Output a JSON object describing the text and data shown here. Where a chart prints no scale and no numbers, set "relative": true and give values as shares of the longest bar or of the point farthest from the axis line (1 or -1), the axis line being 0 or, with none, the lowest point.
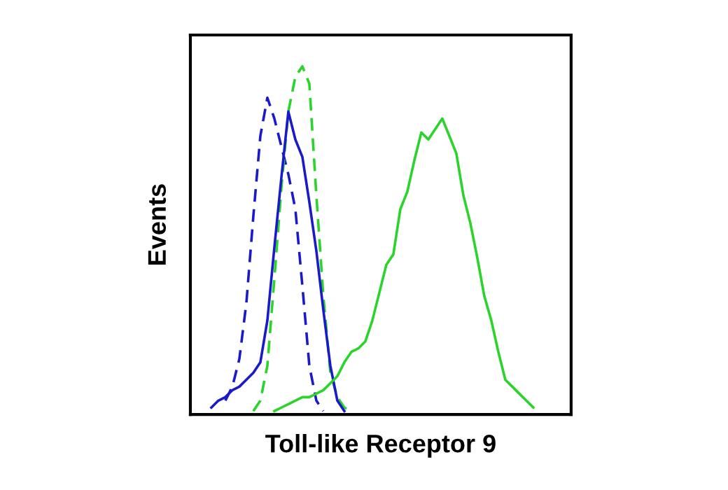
{
  "chart_data": {
    "type": "line",
    "xlabel": "Toll-like Receptor 9",
    "ylabel": "Events",
    "relative": true,
    "tick_labels": false,
    "grid": false,
    "legend": false,
    "marker": "none",
    "categories": [
      null,
      null,
      null,
      null,
      null,
      null,
      null,
      null,
      null,
      null,
      null,
      null,
      null,
      null,
      null,
      null,
      null,
      null,
      null,
      null,
      null,
      null,
      null,
      null,
      null,
      null,
      null,
      null,
      null,
      null,
      null,
      null,
      null,
      null,
      null,
      null,
      null,
      null,
      null,
      null,
      null,
      null,
      null,
      null,
      null,
      null,
      null,
      null,
      null,
      null,
      null,
      null,
      null,
      null,
      null
    ],
    "series": [
      {
        "color": "#1a1acc",
        "line_style": "dashed",
        "values": [
          null,
          null,
          null,
          null,
          null,
          0.04,
          0.08,
          0.16,
          0.32,
          0.57,
          0.8,
          0.91,
          0.85,
          0.77,
          0.69,
          0.59,
          0.37,
          0.14,
          0.04,
          0.01,
          null,
          null,
          null,
          null,
          null,
          null,
          null,
          null,
          null,
          null,
          null,
          null,
          null,
          null,
          null,
          null,
          null,
          null,
          null,
          null,
          null,
          null,
          null,
          null,
          null,
          null,
          null,
          null,
          null,
          null,
          null,
          null,
          null,
          null,
          null
        ]
      },
      {
        "color": "#2ad42a",
        "line_style": "dashed",
        "values": [
          null,
          null,
          null,
          null,
          null,
          null,
          null,
          null,
          null,
          0.01,
          0.04,
          0.14,
          0.39,
          0.65,
          0.87,
          0.97,
          1.0,
          0.95,
          0.63,
          0.34,
          0.12,
          0.05,
          0.02,
          0.01,
          null,
          null,
          null,
          null,
          null,
          null,
          null,
          null,
          null,
          null,
          null,
          null,
          null,
          null,
          null,
          null,
          null,
          null,
          null,
          null,
          null,
          null,
          null,
          null,
          null,
          null,
          null,
          null,
          null,
          null,
          null
        ]
      },
      {
        "color": "#1a1acc",
        "line_style": "solid",
        "values": [
          null,
          null,
          null,
          0.02,
          0.04,
          0.05,
          0.07,
          0.08,
          0.1,
          0.12,
          0.15,
          0.27,
          0.48,
          0.68,
          0.87,
          0.79,
          0.74,
          0.61,
          0.47,
          0.3,
          0.14,
          0.04,
          0.01,
          null,
          null,
          null,
          null,
          null,
          null,
          null,
          null,
          null,
          null,
          null,
          null,
          null,
          null,
          null,
          null,
          null,
          null,
          null,
          null,
          null,
          null,
          null,
          null,
          null,
          null,
          null,
          null,
          null,
          null,
          null,
          null
        ]
      },
      {
        "color": "#2ad42a",
        "line_style": "solid",
        "values": [
          null,
          null,
          null,
          null,
          null,
          null,
          null,
          null,
          null,
          null,
          null,
          null,
          0.01,
          0.02,
          0.03,
          0.04,
          0.05,
          0.05,
          0.06,
          0.07,
          0.09,
          0.11,
          0.15,
          0.18,
          0.19,
          0.21,
          0.27,
          0.35,
          0.43,
          0.46,
          0.59,
          0.64,
          0.73,
          0.81,
          0.79,
          0.82,
          0.85,
          0.8,
          0.75,
          0.63,
          0.55,
          0.45,
          0.34,
          0.27,
          0.18,
          0.1,
          0.08,
          0.06,
          0.04,
          0.02,
          null,
          null,
          null,
          null,
          null
        ]
      }
    ]
  }
}
